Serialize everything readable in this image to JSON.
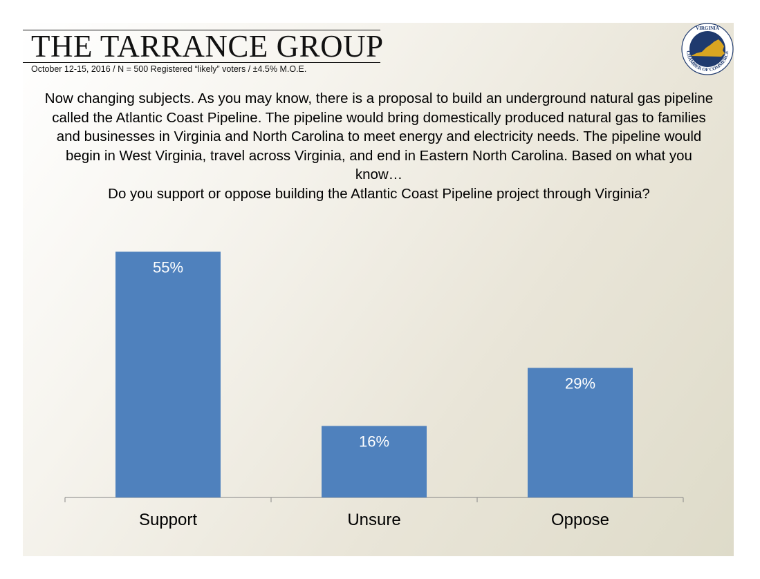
{
  "header": {
    "brand": "THE TARRANCE GROUP",
    "subline": "October 12-15, 2016 / N = 500 Registered “likely” voters / ±4.5% M.O.E.",
    "seal_logo_text": "VIRGINIA CHAMBER OF COMMERCE"
  },
  "question": {
    "line1": "Now changing subjects. As you may know, there is a proposal to build an underground natural gas pipeline called the Atlantic Coast Pipeline. The pipeline would bring domestically produced natural gas to families and businesses in Virginia and North Carolina to meet energy and electricity needs.  The pipeline would begin in West Virginia, travel across Virginia, and end in Eastern North Carolina. Based on what you know…",
    "line2": "Do you support or oppose building the Atlantic Coast Pipeline project through Virginia?"
  },
  "colors": {
    "bar": "#4f81bd",
    "axis": "#868686",
    "seal_navy": "#1f3a6e",
    "seal_gold": "#d9a521"
  },
  "chart_data": {
    "type": "bar",
    "categories": [
      "Support",
      "Unsure",
      "Oppose"
    ],
    "values": [
      55,
      16,
      29
    ],
    "data_labels": [
      "55%",
      "16%",
      "29%"
    ],
    "ylim": [
      0,
      60
    ],
    "grid": false,
    "legend": "none"
  }
}
